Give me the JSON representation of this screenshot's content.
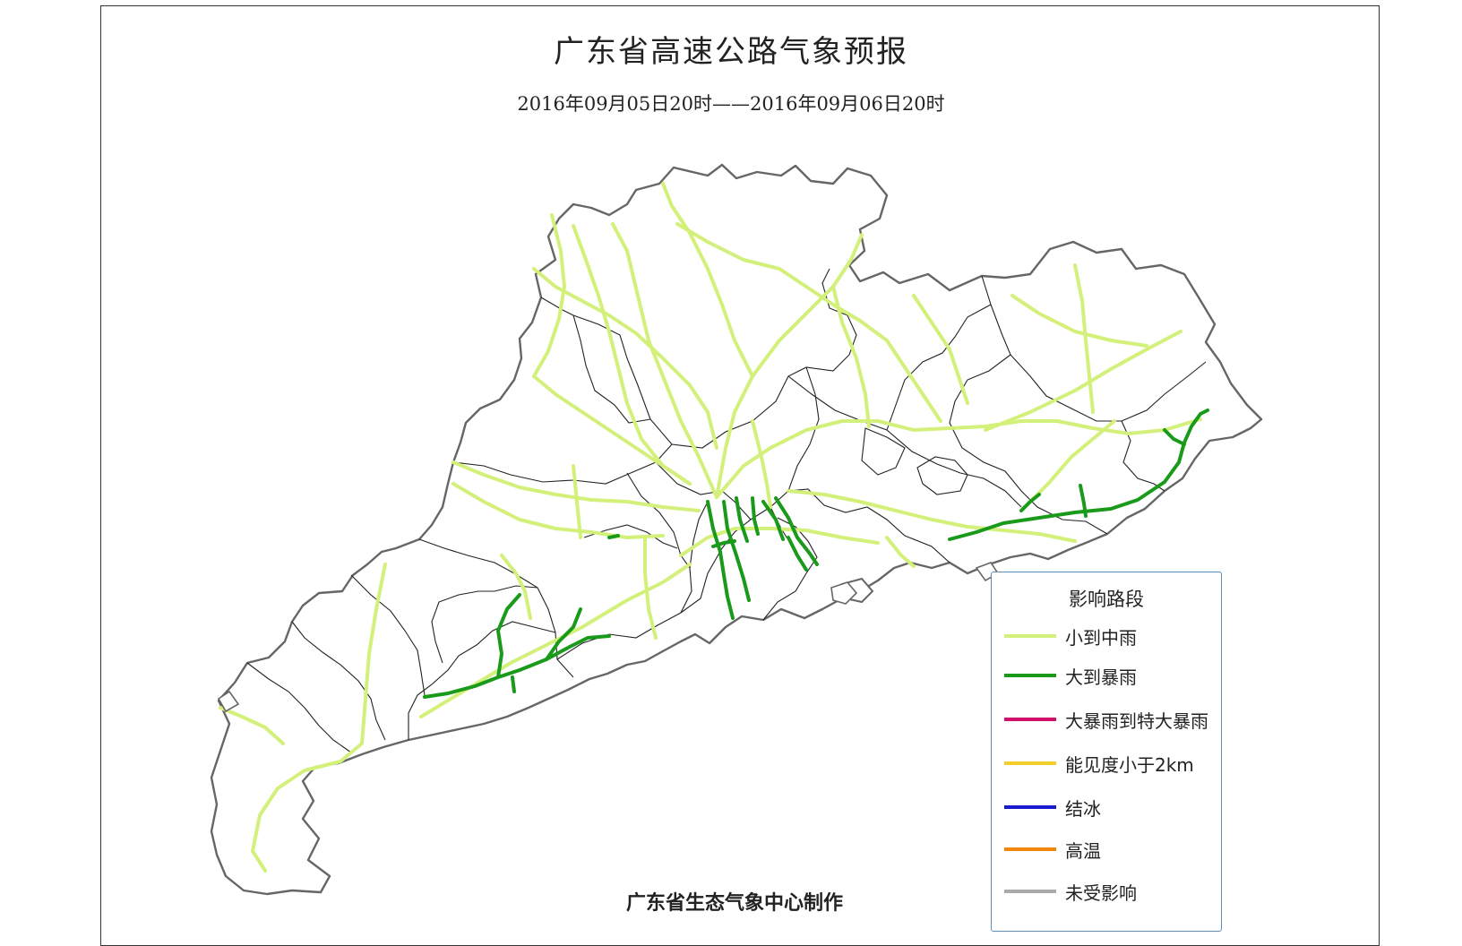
{
  "title": "广东省高速公路气象预报",
  "subtitle": "2016年09月05日20时——2016年09月06日20时",
  "credit": "广东省生态气象中心制作",
  "colors": {
    "province_border": "#666666",
    "city_border": "#222222",
    "road_light_rain": "#d3f07a",
    "road_heavy_rain": "#1a9a1a"
  },
  "legend": {
    "title": "影响路段",
    "items": [
      {
        "label": "小到中雨",
        "color": "#d3f07a"
      },
      {
        "label": "大到暴雨",
        "color": "#1a9a1a"
      },
      {
        "label": "大暴雨到特大暴雨",
        "color": "#d0106b"
      },
      {
        "label": "能见度小于2km",
        "color": "#f2cf2a"
      },
      {
        "label": "结冰",
        "color": "#1a1ad0"
      },
      {
        "label": "高温",
        "color": "#f0860a"
      },
      {
        "label": "未受影响",
        "color": "#aaaaaa"
      }
    ]
  }
}
